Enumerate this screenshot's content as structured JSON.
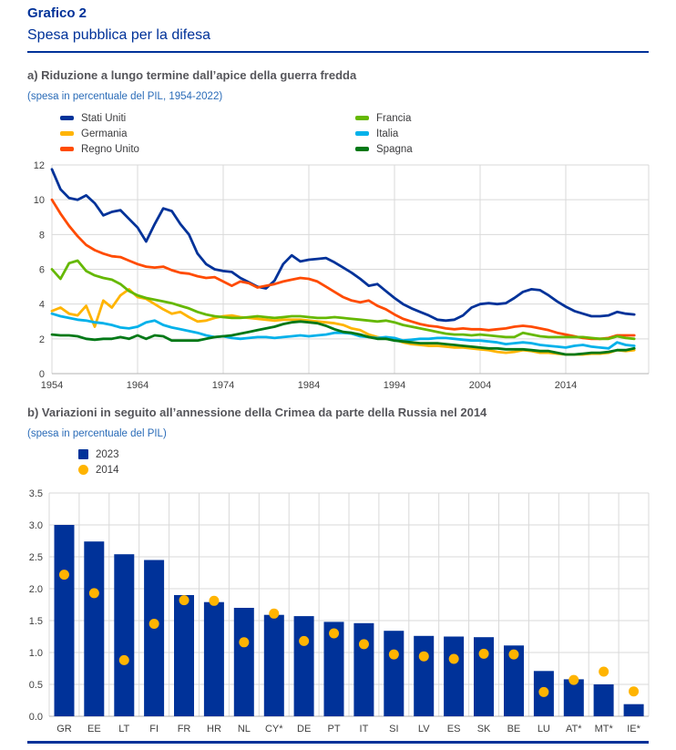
{
  "header": {
    "label": "Grafico 2",
    "title": "Spesa pubblica per la difesa"
  },
  "colors": {
    "brand_navy": "#003299",
    "heading_gray": "#55555a",
    "subtitle_blue": "#2b6cb8",
    "gridline": "#d9d9d9",
    "axis_line": "#b3b3b3",
    "axis_text": "#404040"
  },
  "chart_data": [
    {
      "type": "line",
      "title": "a) Riduzione a lungo termine dall’apice della guerra fredda",
      "subtitle": "(spesa in percentuale del PIL, 1954-2022)",
      "x_start": 1954,
      "x_end": 2022,
      "ylim": [
        0,
        12
      ],
      "yticks": [
        "0",
        "2",
        "4",
        "6",
        "8",
        "10",
        "12"
      ],
      "xticks": [
        "1954",
        "1964",
        "1974",
        "1984",
        "1994",
        "2004",
        "2014"
      ],
      "grid": true,
      "legend_position": "top",
      "series": [
        {
          "name": "Stati Uniti",
          "color": "#003299",
          "values": [
            11.75,
            10.6,
            10.1,
            10.0,
            10.25,
            9.8,
            9.1,
            9.3,
            9.4,
            8.9,
            8.4,
            7.6,
            8.6,
            9.5,
            9.35,
            8.6,
            8.0,
            6.9,
            6.3,
            6.0,
            5.9,
            5.85,
            5.5,
            5.25,
            5.0,
            4.9,
            5.35,
            6.3,
            6.8,
            6.45,
            6.55,
            6.6,
            6.65,
            6.4,
            6.1,
            5.8,
            5.45,
            5.05,
            5.15,
            4.75,
            4.35,
            4.0,
            3.75,
            3.55,
            3.35,
            3.1,
            3.05,
            3.1,
            3.35,
            3.8,
            4.0,
            4.05,
            4.0,
            4.05,
            4.35,
            4.7,
            4.85,
            4.8,
            4.5,
            4.15,
            3.85,
            3.6,
            3.45,
            3.3,
            3.3,
            3.35,
            3.55,
            3.45,
            3.4
          ]
        },
        {
          "name": "Germania",
          "color": "#FFB400",
          "values": [
            3.6,
            3.8,
            3.45,
            3.35,
            3.9,
            2.7,
            4.2,
            3.8,
            4.5,
            4.85,
            4.4,
            4.3,
            4.0,
            3.7,
            3.45,
            3.55,
            3.25,
            3.0,
            3.05,
            3.2,
            3.3,
            3.35,
            3.25,
            3.2,
            3.15,
            3.1,
            3.05,
            3.1,
            3.1,
            3.1,
            3.05,
            3.0,
            2.95,
            2.9,
            2.8,
            2.6,
            2.5,
            2.25,
            2.1,
            2.0,
            1.95,
            1.8,
            1.7,
            1.65,
            1.6,
            1.6,
            1.55,
            1.5,
            1.5,
            1.45,
            1.4,
            1.35,
            1.25,
            1.2,
            1.25,
            1.35,
            1.3,
            1.2,
            1.2,
            1.15,
            1.1,
            1.1,
            1.1,
            1.15,
            1.15,
            1.2,
            1.35,
            1.3,
            1.35
          ]
        },
        {
          "name": "Regno Unito",
          "color": "#FF4B00",
          "values": [
            10.0,
            9.2,
            8.5,
            7.9,
            7.4,
            7.1,
            6.9,
            6.75,
            6.7,
            6.5,
            6.3,
            6.15,
            6.1,
            6.15,
            5.95,
            5.8,
            5.75,
            5.6,
            5.5,
            5.55,
            5.3,
            5.05,
            5.3,
            5.2,
            4.95,
            5.05,
            5.15,
            5.3,
            5.4,
            5.5,
            5.45,
            5.3,
            5.0,
            4.7,
            4.4,
            4.2,
            4.1,
            4.2,
            3.9,
            3.7,
            3.4,
            3.15,
            3.0,
            2.85,
            2.75,
            2.7,
            2.6,
            2.55,
            2.6,
            2.55,
            2.55,
            2.5,
            2.55,
            2.6,
            2.7,
            2.75,
            2.7,
            2.6,
            2.5,
            2.35,
            2.25,
            2.15,
            2.05,
            2.0,
            2.0,
            2.05,
            2.2,
            2.2,
            2.2
          ]
        },
        {
          "name": "Francia",
          "color": "#65B800",
          "values": [
            6.0,
            5.45,
            6.35,
            6.5,
            5.9,
            5.65,
            5.5,
            5.4,
            5.15,
            4.75,
            4.5,
            4.35,
            4.25,
            4.15,
            4.05,
            3.9,
            3.75,
            3.55,
            3.4,
            3.3,
            3.25,
            3.2,
            3.2,
            3.25,
            3.3,
            3.25,
            3.2,
            3.25,
            3.3,
            3.3,
            3.25,
            3.2,
            3.2,
            3.25,
            3.2,
            3.15,
            3.1,
            3.05,
            3.0,
            3.05,
            2.95,
            2.8,
            2.7,
            2.6,
            2.5,
            2.4,
            2.3,
            2.25,
            2.25,
            2.2,
            2.25,
            2.2,
            2.15,
            2.1,
            2.1,
            2.35,
            2.25,
            2.15,
            2.1,
            2.1,
            2.1,
            2.1,
            2.1,
            2.05,
            2.0,
            2.0,
            2.15,
            2.05,
            2.0
          ]
        },
        {
          "name": "Italia",
          "color": "#00B1EA",
          "values": [
            3.45,
            3.3,
            3.2,
            3.1,
            3.05,
            2.95,
            2.9,
            2.8,
            2.65,
            2.6,
            2.7,
            2.95,
            3.05,
            2.8,
            2.65,
            2.55,
            2.45,
            2.35,
            2.2,
            2.1,
            2.15,
            2.05,
            2.0,
            2.05,
            2.1,
            2.1,
            2.05,
            2.1,
            2.15,
            2.2,
            2.15,
            2.2,
            2.25,
            2.35,
            2.35,
            2.3,
            2.15,
            2.1,
            2.05,
            2.1,
            2.05,
            1.9,
            1.95,
            2.0,
            2.0,
            2.05,
            2.05,
            2.0,
            1.95,
            1.9,
            1.9,
            1.85,
            1.8,
            1.7,
            1.75,
            1.8,
            1.75,
            1.65,
            1.6,
            1.55,
            1.5,
            1.6,
            1.65,
            1.55,
            1.5,
            1.45,
            1.8,
            1.65,
            1.6
          ]
        },
        {
          "name": "Spagna",
          "color": "#007816",
          "values": [
            2.25,
            2.2,
            2.2,
            2.15,
            2.0,
            1.95,
            2.0,
            2.0,
            2.1,
            2.0,
            2.2,
            2.0,
            2.2,
            2.15,
            1.9,
            1.9,
            1.9,
            1.9,
            2.0,
            2.1,
            2.15,
            2.2,
            2.3,
            2.4,
            2.5,
            2.6,
            2.7,
            2.85,
            2.95,
            3.0,
            2.95,
            2.9,
            2.75,
            2.55,
            2.4,
            2.35,
            2.25,
            2.1,
            2.0,
            2.0,
            1.9,
            1.85,
            1.8,
            1.75,
            1.75,
            1.75,
            1.7,
            1.65,
            1.6,
            1.55,
            1.5,
            1.45,
            1.45,
            1.4,
            1.4,
            1.4,
            1.35,
            1.3,
            1.3,
            1.2,
            1.1,
            1.1,
            1.15,
            1.2,
            1.2,
            1.25,
            1.35,
            1.35,
            1.45
          ]
        }
      ]
    },
    {
      "type": "bar",
      "title": "b) Variazioni in seguito all’annessione della Crimea da parte della Russia nel 2014",
      "subtitle": "(spesa in percentuale del PIL)",
      "categories": [
        "GR",
        "EE",
        "LT",
        "FI",
        "FR",
        "HR",
        "NL",
        "CY*",
        "DE",
        "PT",
        "IT",
        "SI",
        "LV",
        "ES",
        "SK",
        "BE",
        "LU",
        "AT*",
        "MT*",
        "IE*"
      ],
      "ylim": [
        0,
        3.5
      ],
      "yticks": [
        "0.0",
        "0.5",
        "1.0",
        "1.5",
        "2.0",
        "2.5",
        "3.0",
        "3.5"
      ],
      "grid": true,
      "legend_position": "top",
      "series": [
        {
          "name": "2023",
          "mark": "bar",
          "color": "#003299",
          "values": [
            3.0,
            2.74,
            2.54,
            2.45,
            1.9,
            1.79,
            1.7,
            1.59,
            1.57,
            1.48,
            1.46,
            1.34,
            1.26,
            1.25,
            1.24,
            1.11,
            0.71,
            0.58,
            0.5,
            0.19
          ]
        },
        {
          "name": "2014",
          "mark": "dot",
          "color": "#FFB400",
          "values": [
            2.22,
            1.93,
            0.88,
            1.45,
            1.82,
            1.81,
            1.16,
            1.61,
            1.18,
            1.3,
            1.13,
            0.97,
            0.94,
            0.9,
            0.98,
            0.97,
            0.38,
            0.57,
            0.7,
            0.39
          ]
        }
      ]
    }
  ]
}
